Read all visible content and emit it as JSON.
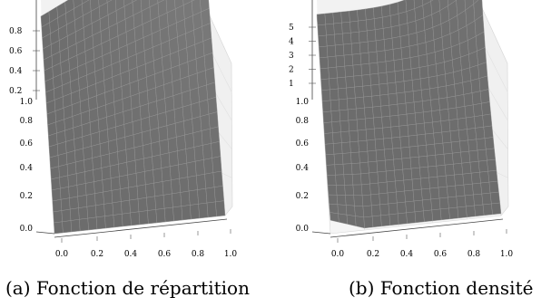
{
  "charts": [
    {
      "caption": "(a) Fonction de répartition",
      "chart_data": {
        "type": "surface3d",
        "function": "F(x,y) = x*y",
        "x_range": [
          0,
          1
        ],
        "y_range": [
          0,
          1
        ],
        "x_ticks": [
          "0.0",
          "0.2",
          "0.4",
          "0.6",
          "0.8",
          "1.0"
        ],
        "y_ticks": [
          "0.0",
          "0.2",
          "0.4",
          "0.6",
          "0.8",
          "1.0"
        ],
        "z_ticks": [
          "0.2",
          "0.4",
          "0.6",
          "0.8"
        ],
        "z_tick_values": [
          0.2,
          0.4,
          0.6,
          0.8
        ],
        "z_range": [
          0,
          1
        ],
        "surface_color": "#707070",
        "grid": true
      }
    },
    {
      "caption": "(b) Fonction densité",
      "chart_data": {
        "type": "surface3d",
        "function": "density, peak ≈ 5 at x = 1, y = 1",
        "x_range": [
          0,
          1
        ],
        "y_range": [
          0,
          1
        ],
        "x_ticks": [
          "0.0",
          "0.2",
          "0.4",
          "0.6",
          "0.8",
          "1.0"
        ],
        "y_ticks": [
          "0.0",
          "0.2",
          "0.4",
          "0.6",
          "0.8",
          "1.0"
        ],
        "z_ticks": [
          "1",
          "2",
          "3",
          "4",
          "5"
        ],
        "z_tick_values": [
          1,
          2,
          3,
          4,
          5
        ],
        "z_range": [
          0,
          5.5
        ],
        "surface_color": "#707070",
        "grid": true
      }
    }
  ]
}
